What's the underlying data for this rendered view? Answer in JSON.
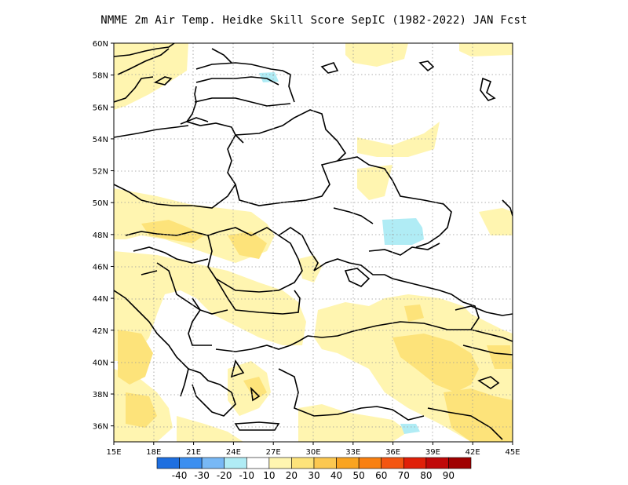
{
  "title": "NMME  2m Air Temp. Heidke Skill Score SepIC (1982-2022) JAN Fcst",
  "map": {
    "lon_range": [
      15,
      45
    ],
    "lat_range": [
      35,
      60
    ],
    "lat_ticks": [
      "36N",
      "38N",
      "40N",
      "42N",
      "44N",
      "46N",
      "48N",
      "50N",
      "52N",
      "54N",
      "56N",
      "58N",
      "60N"
    ],
    "lon_ticks": [
      "15E",
      "18E",
      "21E",
      "24E",
      "27E",
      "30E",
      "33E",
      "36E",
      "39E",
      "42E",
      "45E"
    ],
    "grid": "dotted"
  },
  "colorbar": {
    "colors": [
      "#1e6fe0",
      "#3c8ff0",
      "#78b8f5",
      "#b0ecf5",
      "#ffffff",
      "#fff5b0",
      "#fde37a",
      "#fcc850",
      "#faa420",
      "#f98010",
      "#f45510",
      "#e02008",
      "#c00808",
      "#a00000"
    ],
    "labels": [
      "-40",
      "-30",
      "-20",
      "-10",
      "10",
      "20",
      "30",
      "40",
      "50",
      "60",
      "70",
      "80",
      "90"
    ]
  },
  "colors": {
    "light_yellow": "#fff5b0",
    "yellow": "#fde37a",
    "light_cyan": "#b0ecf5",
    "border": "#000000"
  }
}
